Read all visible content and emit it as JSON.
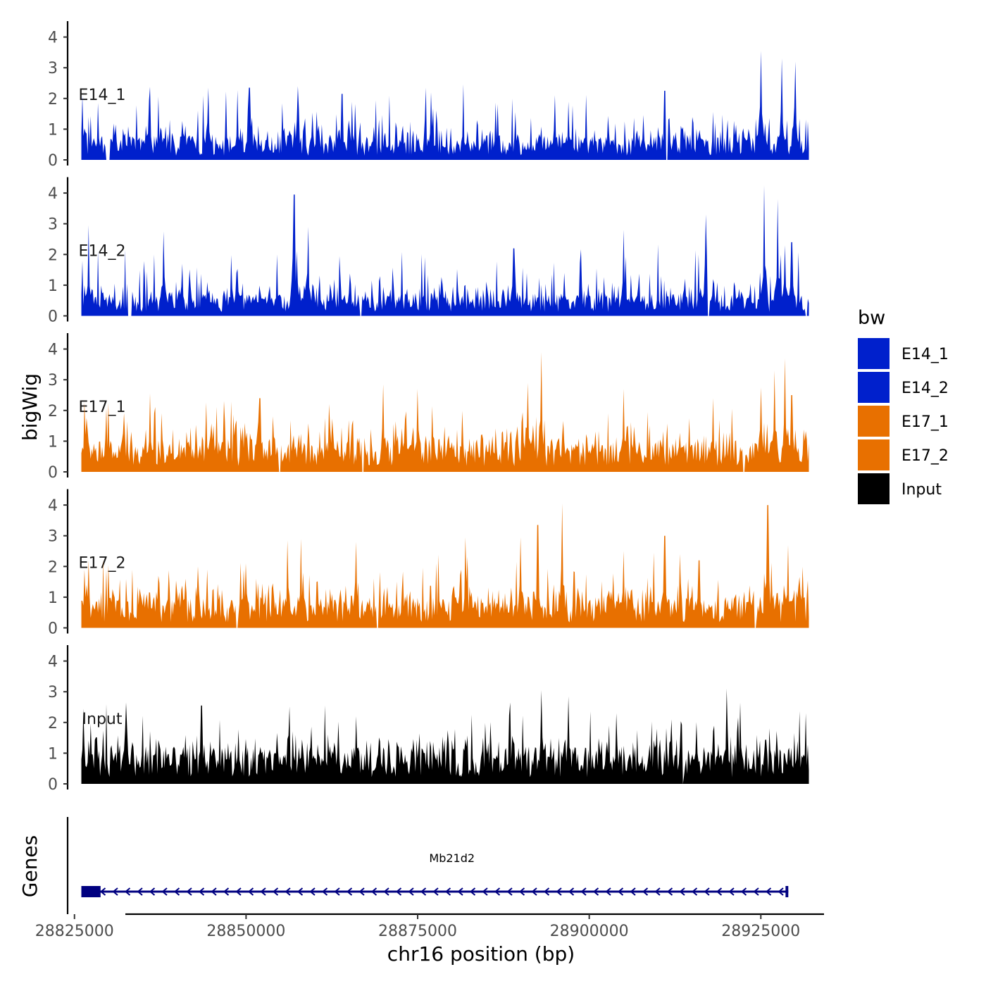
{
  "chart_data": {
    "type": "area",
    "title": "",
    "ylabel": "bigWig",
    "xlabel": "chr16 position (bp)",
    "ylim": [
      0,
      4.4
    ],
    "yticks": [
      "0",
      "1",
      "2",
      "3",
      "4"
    ],
    "xlim": [
      28824000,
      28934000
    ],
    "data_range": [
      28826000,
      28932000
    ],
    "xticks": [
      {
        "value": 28825000,
        "label": "28825000"
      },
      {
        "value": 28850000,
        "label": "28850000"
      },
      {
        "value": 28875000,
        "label": "28875000"
      },
      {
        "value": 28900000,
        "label": "28900000"
      },
      {
        "value": 28925000,
        "label": "28925000"
      }
    ],
    "legend": {
      "title": "bw",
      "position": "right"
    },
    "series": [
      {
        "name": "E14_1",
        "color": "#0020CC",
        "baseline": 0.55,
        "noise": 0.6,
        "max": 3.55,
        "peaks": [
          [
            28826200,
            2.1
          ],
          [
            28844500,
            2.35
          ],
          [
            28850500,
            2.35
          ],
          [
            28857500,
            2.4
          ],
          [
            28864000,
            2.15
          ],
          [
            28877000,
            2.2
          ],
          [
            28895000,
            2.1
          ],
          [
            28897000,
            1.9
          ],
          [
            28911000,
            2.25
          ],
          [
            28925000,
            3.55
          ],
          [
            28928000,
            3.3
          ],
          [
            28930000,
            3.2
          ]
        ],
        "gaps": [
          [
            28829500,
            28830200
          ],
          [
            28911200,
            28911500
          ]
        ]
      },
      {
        "name": "E14_2",
        "color": "#0020CC",
        "baseline": 0.5,
        "noise": 0.6,
        "max": 4.25,
        "peaks": [
          [
            28827100,
            2.95
          ],
          [
            28838000,
            2.75
          ],
          [
            28857000,
            3.95
          ],
          [
            28859000,
            2.9
          ],
          [
            28889000,
            2.2
          ],
          [
            28905000,
            2.8
          ],
          [
            28917000,
            3.3
          ],
          [
            28925500,
            4.25
          ],
          [
            28927500,
            3.8
          ],
          [
            28928500,
            2.3
          ],
          [
            28929500,
            2.4
          ]
        ],
        "gaps": [
          [
            28832800,
            28833300
          ],
          [
            28866500,
            28866800
          ],
          [
            28917200,
            28917500
          ],
          [
            28931400,
            28931700
          ]
        ]
      },
      {
        "name": "E17_1",
        "color": "#E87000",
        "baseline": 0.75,
        "noise": 0.55,
        "max": 3.9,
        "peaks": [
          [
            28826500,
            2.25
          ],
          [
            28836000,
            2.55
          ],
          [
            28852000,
            2.4
          ],
          [
            28870000,
            2.85
          ],
          [
            28875000,
            2.7
          ],
          [
            28891000,
            2.9
          ],
          [
            28893000,
            3.9
          ],
          [
            28905000,
            2.7
          ],
          [
            28918000,
            2.4
          ],
          [
            28925000,
            2.75
          ],
          [
            28927000,
            3.3
          ],
          [
            28928500,
            3.7
          ],
          [
            28929500,
            2.5
          ]
        ],
        "gaps": [
          [
            28854800,
            28855100
          ],
          [
            28866800,
            28867100
          ],
          [
            28922300,
            28922600
          ]
        ]
      },
      {
        "name": "E17_2",
        "color": "#E87000",
        "baseline": 0.7,
        "noise": 0.55,
        "max": 4.05,
        "peaks": [
          [
            28826400,
            1.9
          ],
          [
            28843000,
            2.0
          ],
          [
            28850000,
            2.1
          ],
          [
            28856000,
            2.85
          ],
          [
            28858000,
            2.9
          ],
          [
            28866000,
            2.8
          ],
          [
            28882000,
            2.95
          ],
          [
            28890000,
            2.95
          ],
          [
            28892500,
            3.35
          ],
          [
            28896000,
            4.05
          ],
          [
            28905000,
            2.5
          ],
          [
            28911000,
            3.0
          ],
          [
            28916000,
            2.2
          ],
          [
            28926000,
            4.0
          ],
          [
            28929000,
            2.7
          ]
        ],
        "gaps": [
          [
            28848500,
            28848800
          ],
          [
            28869000,
            28869300
          ],
          [
            28924000,
            28924300
          ]
        ]
      },
      {
        "name": "Input",
        "color": "#000000",
        "baseline": 0.85,
        "noise": 0.5,
        "max": 3.1,
        "peaks": [
          [
            28826300,
            2.45
          ],
          [
            28832500,
            2.65
          ],
          [
            28843500,
            2.55
          ],
          [
            28866000,
            2.2
          ],
          [
            28888500,
            2.65
          ],
          [
            28893000,
            3.05
          ],
          [
            28897000,
            2.85
          ],
          [
            28904000,
            2.3
          ],
          [
            28912000,
            2.1
          ],
          [
            28920000,
            3.1
          ],
          [
            28922000,
            2.65
          ],
          [
            28931500,
            2.3
          ]
        ],
        "gaps": [
          [
            28913500,
            28913800
          ]
        ]
      }
    ],
    "gene_track": {
      "label": "Genes",
      "gene": "Mb21d2",
      "color": "#000080",
      "start": 28826000,
      "end": 28929000,
      "strand": "-",
      "exons": [
        [
          28826000,
          28828800
        ],
        [
          28928600,
          28929000
        ]
      ],
      "label_position": 28880000
    }
  }
}
